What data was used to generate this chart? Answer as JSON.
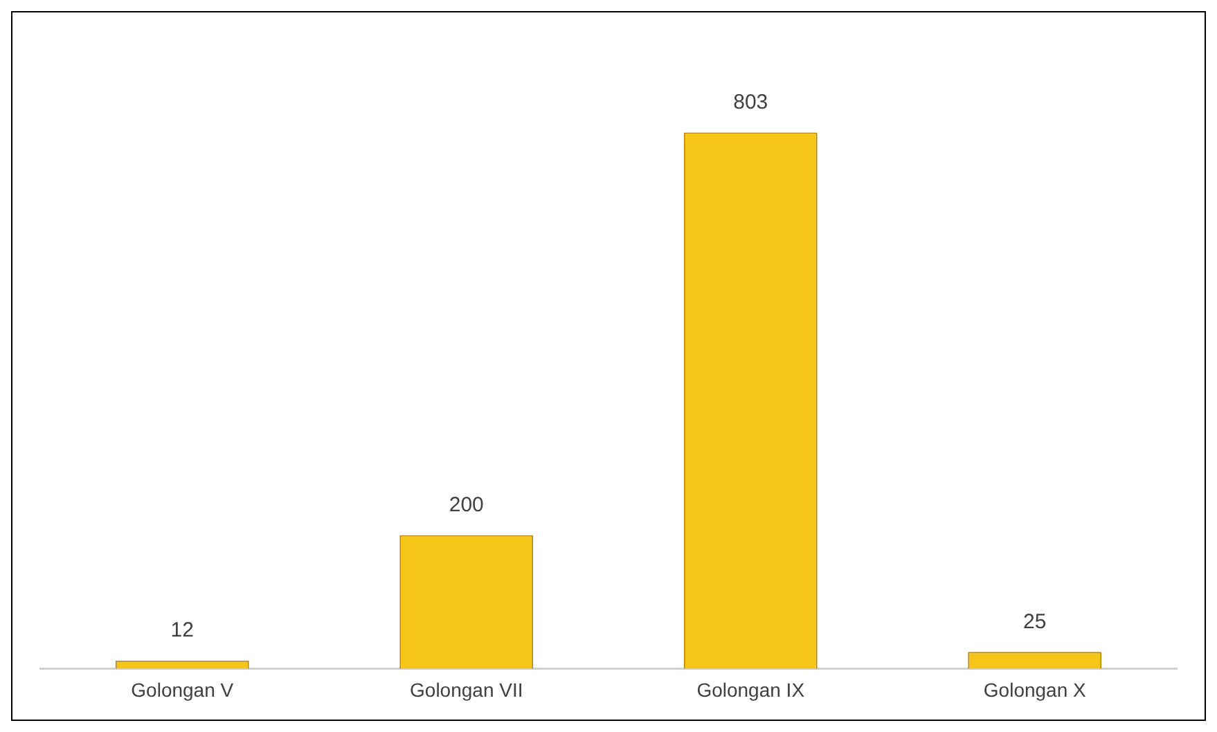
{
  "chart_data": {
    "type": "bar",
    "categories": [
      "Golongan V",
      "Golongan VII",
      "Golongan IX",
      "Golongan X"
    ],
    "values": [
      12,
      200,
      803,
      25
    ],
    "color": "#f5c518",
    "data_labels": true,
    "grid": false,
    "legend": false,
    "tick_labels": "x"
  }
}
